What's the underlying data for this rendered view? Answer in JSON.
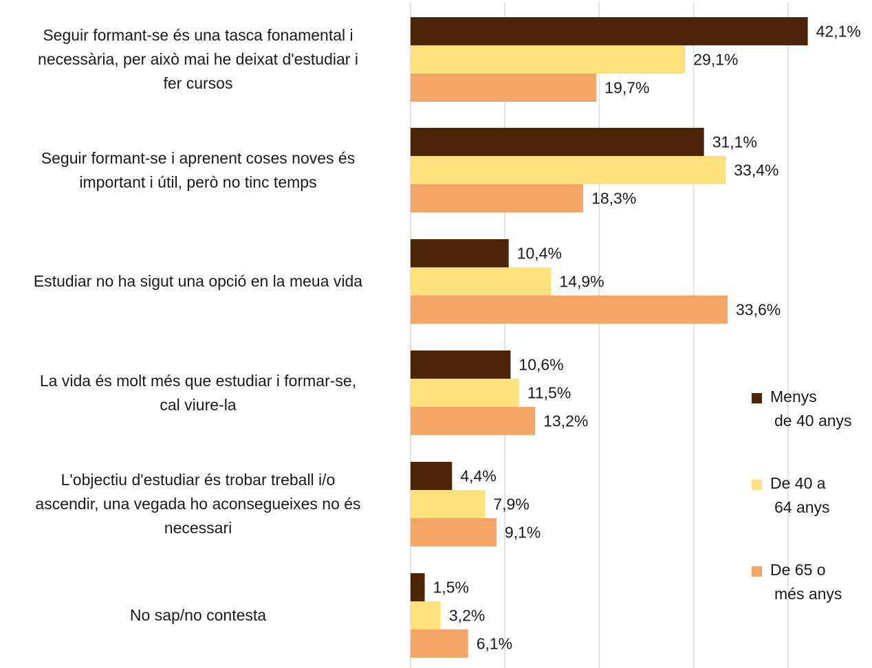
{
  "chart_data": {
    "type": "bar",
    "orientation": "horizontal",
    "categories": [
      "Seguir formant-se és una tasca fonamental i necessària, per això mai he deixat d'estudiar i fer cursos",
      "Seguir formant-se i aprenent coses noves és important i útil, però no tinc temps",
      "Estudiar no ha sigut una opció en la meua vida",
      "La vida és molt més que estudiar i formar-se, cal viure-la",
      "L'objectiu d'estudiar és trobar treball i/o ascendir, una vegada ho aconsegueixes no és necessari",
      "No sap/no contesta"
    ],
    "series": [
      {
        "name": "Menys de 40 anys",
        "color": "#4e2408",
        "values": [
          42.1,
          31.1,
          10.4,
          10.6,
          4.4,
          1.5
        ],
        "labels": [
          "42,1%",
          "31,1%",
          "10,4%",
          "10,6%",
          "4,4%",
          "1,5%"
        ]
      },
      {
        "name": "De 40 a 64 anys",
        "color": "#ffe17c",
        "values": [
          29.1,
          33.4,
          14.9,
          11.5,
          7.9,
          3.2
        ],
        "labels": [
          "29,1%",
          "33,4%",
          "14,9%",
          "11,5%",
          "7,9%",
          "3,2%"
        ]
      },
      {
        "name": "De 65 o més anys",
        "color": "#f4a465",
        "values": [
          19.7,
          18.3,
          33.6,
          13.2,
          9.1,
          6.1
        ],
        "labels": [
          "19,7%",
          "18,3%",
          "33,6%",
          "13,2%",
          "9,1%",
          "6,1%"
        ]
      }
    ],
    "xlim": [
      0,
      50
    ],
    "grid": true,
    "legend_position": "right",
    "legend_lines": [
      [
        "Menys",
        "de 40 anys"
      ],
      [
        "De 40 a",
        "64 anys"
      ],
      [
        "De 65 o",
        "més anys"
      ]
    ],
    "category_lines": [
      [
        "Seguir formant-se és una tasca fonamental i",
        "necessària, per això mai he deixat d'estudiar i",
        "fer cursos"
      ],
      [
        "Seguir formant-se i aprenent coses noves és",
        "important i útil, però no tinc temps"
      ],
      [
        "Estudiar no ha sigut una opció en la meua vida"
      ],
      [
        "La vida és molt més que estudiar i formar-se,",
        "cal viure-la"
      ],
      [
        "L'objectiu d'estudiar és trobar treball i/o",
        "ascendir, una vegada ho aconsegueixes no és",
        "necessari"
      ],
      [
        "No sap/no contesta"
      ]
    ]
  }
}
